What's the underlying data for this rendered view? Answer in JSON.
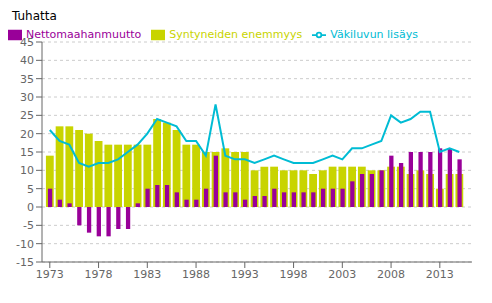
{
  "chart_data": {
    "type": "bar",
    "ylabel": "Tuhatta",
    "x": [
      1973,
      1974,
      1975,
      1976,
      1977,
      1978,
      1979,
      1980,
      1981,
      1982,
      1983,
      1984,
      1985,
      1986,
      1987,
      1988,
      1989,
      1990,
      1991,
      1992,
      1993,
      1994,
      1995,
      1996,
      1997,
      1998,
      1999,
      2000,
      2001,
      2002,
      2003,
      2004,
      2005,
      2006,
      2007,
      2008,
      2009,
      2010,
      2011,
      2012,
      2013,
      2014,
      2015
    ],
    "series": [
      {
        "name": "Syntyneiden enemmyys",
        "type": "bar",
        "color": "#c8d400",
        "values": [
          14,
          22,
          22,
          21,
          20,
          18,
          17,
          17,
          17,
          17,
          17,
          24,
          23,
          21,
          17,
          17,
          15,
          15,
          16,
          15,
          15,
          10,
          11,
          11,
          10,
          10,
          10,
          9,
          10,
          11,
          11,
          11,
          11,
          10,
          10,
          11,
          11,
          9,
          10,
          9,
          5,
          9,
          9
        ]
      },
      {
        "name": "Nettomaahanmuutto",
        "type": "bar",
        "color": "#990099",
        "values": [
          5,
          2,
          1,
          -5,
          -7,
          -8,
          -8,
          -6,
          -6,
          1,
          5,
          6,
          6,
          4,
          2,
          2,
          5,
          14,
          4,
          4,
          2,
          3,
          3,
          5,
          4,
          4,
          4,
          4,
          5,
          5,
          5,
          7,
          9,
          9,
          10,
          14,
          12,
          15,
          15,
          15,
          16,
          16,
          13
        ]
      },
      {
        "name": "Väkiluvun lisäys",
        "type": "line",
        "color": "#00bcd4",
        "values": [
          21,
          18,
          17,
          12,
          11,
          12,
          12,
          13,
          15,
          17,
          20,
          24,
          23,
          22,
          18,
          18,
          14,
          28,
          14,
          13,
          13,
          12,
          13,
          14,
          13,
          12,
          12,
          12,
          13,
          14,
          13,
          16,
          16,
          17,
          18,
          25,
          23,
          24,
          26,
          26,
          15,
          16,
          15
        ]
      }
    ],
    "xlim": [
      1972.2,
      2016.3
    ],
    "xticks": [
      1973,
      1978,
      1983,
      1988,
      1993,
      1998,
      2003,
      2008,
      2013
    ],
    "ylim": [
      -15,
      45
    ],
    "yticks": [
      -15,
      -10,
      -5,
      0,
      5,
      10,
      15,
      20,
      25,
      30,
      35,
      40,
      45
    ],
    "grid": true,
    "legend": "upper left"
  }
}
